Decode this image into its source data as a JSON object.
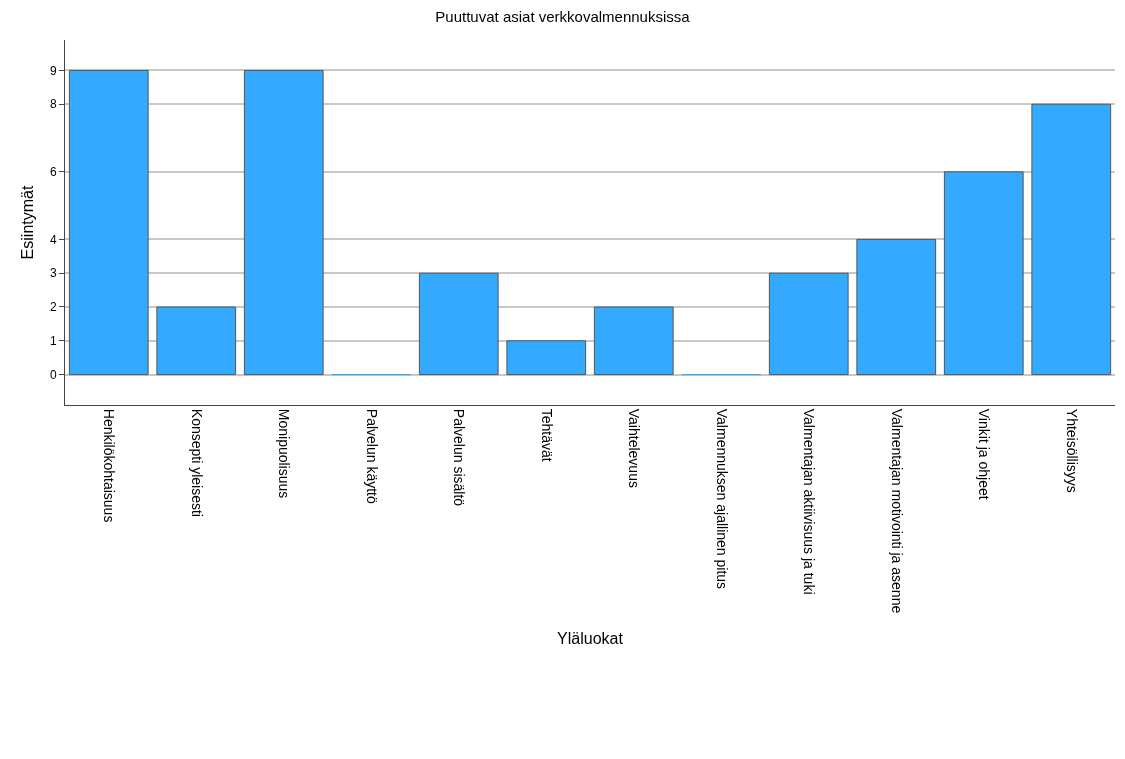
{
  "chart_data": {
    "type": "bar",
    "title": "Puuttuvat asiat verkkovalmennuksissa",
    "xlabel": "Yläluokat",
    "ylabel": "Esiintymät",
    "categories": [
      "Henkilökohtaisuus",
      "Konsepti yleisesti",
      "Monipuolisuus",
      "Palvelun käyttö",
      "Palvelun sisältö",
      "Tehtävät",
      "Vaihtelevuus",
      "Valmennuksen ajallinen pitus",
      "Valmentajan aktiivisuus ja tuki",
      "Valmentajan motivointi ja asenne",
      "Vinkit ja ohjeet",
      "Yhteisöllisyys"
    ],
    "values": [
      9,
      2,
      9,
      0,
      3,
      1,
      2,
      0,
      3,
      4,
      6,
      8
    ],
    "color": "#33aaff",
    "ylim": [
      -0.9,
      9.9
    ],
    "yticks": [
      0,
      1,
      2,
      3,
      4,
      6,
      8,
      9
    ],
    "grid": "y"
  }
}
